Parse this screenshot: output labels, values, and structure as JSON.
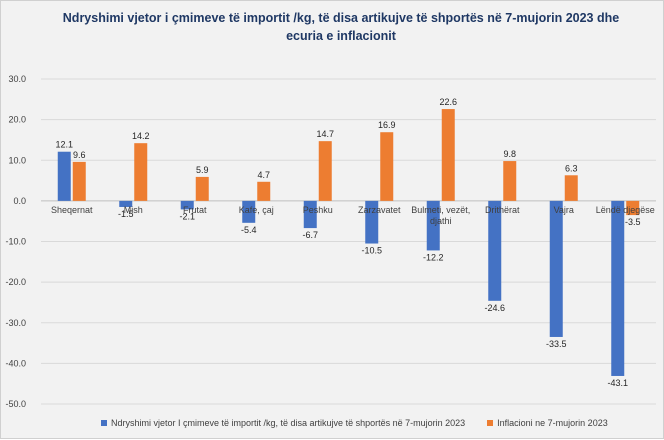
{
  "chart_data": {
    "type": "bar",
    "title": "Ndryshimi vjetor i çmimeve të importit /kg, të disa artikujve të shportës në 7-mujorin 2023 dhe  ecuria e inflacionit",
    "categories": [
      "Sheqernat",
      "Mish",
      "Frutat",
      "Kafe, çaj",
      "Peshku",
      "Zarzavatet",
      "Bulmeti, vezët, djathi",
      "Drithërat",
      "Vajra",
      "Lëndë djegëse"
    ],
    "series": [
      {
        "name": "Ndryshimi vjetor I çmimeve të importit /kg, të disa artikujve të shportës në 7-mujorin 2023",
        "color": "#4472c4",
        "values": [
          12.1,
          -1.5,
          -2.1,
          -5.4,
          -6.7,
          -10.5,
          -12.2,
          -24.6,
          -33.5,
          -43.1
        ]
      },
      {
        "name": "Inflacioni ne 7-mujorin 2023",
        "color": "#ed7d31",
        "values": [
          9.6,
          14.2,
          5.9,
          4.7,
          14.7,
          16.9,
          22.6,
          9.8,
          6.3,
          -3.5
        ]
      }
    ],
    "ylim": [
      -50,
      30
    ],
    "yticks": [
      "30.0",
      "20.0",
      "10.0",
      "0.0",
      "-10.0",
      "-20.0",
      "-30.0",
      "-40.0",
      "-50.0"
    ],
    "grid": true,
    "legend": "bottom"
  }
}
